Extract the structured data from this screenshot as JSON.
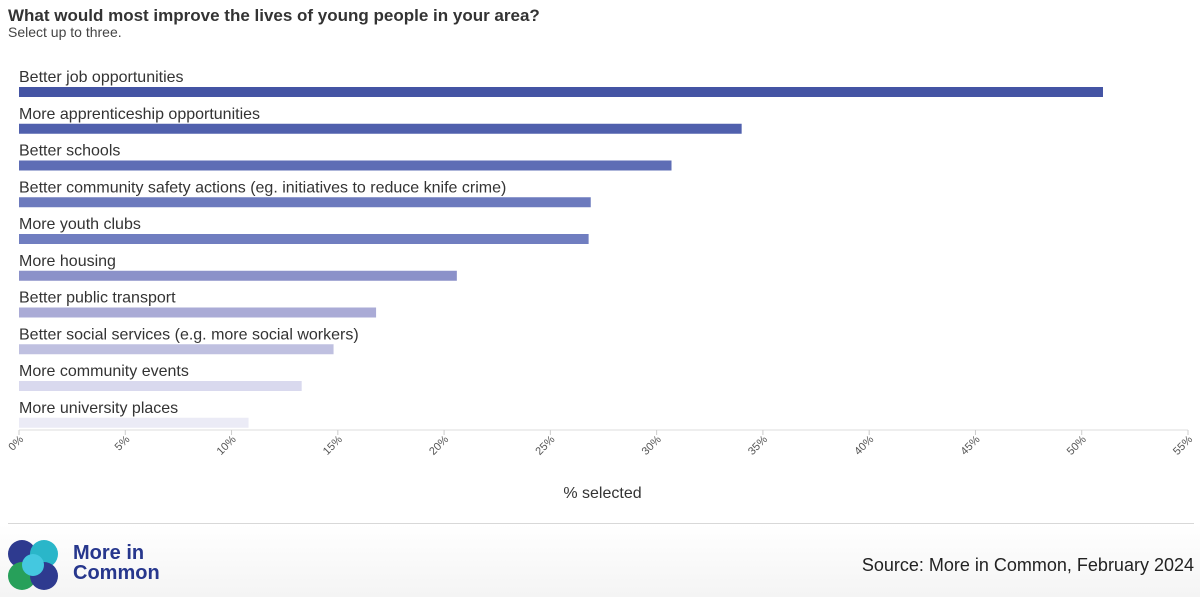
{
  "chart_data": {
    "type": "bar",
    "orientation": "horizontal",
    "title": "What would most improve the lives of young people in your area?",
    "subtitle": "Select up to three.",
    "xlabel": "% selected",
    "ylabel": "",
    "xlim": [
      0,
      55
    ],
    "ticks": [
      0,
      5,
      10,
      15,
      20,
      25,
      30,
      35,
      40,
      45,
      50,
      55
    ],
    "tick_labels": [
      "0%",
      "5%",
      "10%",
      "15%",
      "20%",
      "25%",
      "30%",
      "35%",
      "40%",
      "45%",
      "50%",
      "55%"
    ],
    "categories": [
      "Better job opportunities",
      "More apprenticeship opportunities",
      "Better schools",
      "Better community safety actions (eg. initiatives to reduce knife crime)",
      "More youth clubs",
      "More housing",
      "Better public transport",
      "Better social services (e.g. more social workers)",
      "More community events",
      "More university places"
    ],
    "values": [
      51,
      34,
      30.7,
      26.9,
      26.8,
      20.6,
      16.8,
      14.8,
      13.3,
      10.8
    ],
    "colors": [
      "#4454a4",
      "#5060ad",
      "#5e6db5",
      "#6c7abd",
      "#707ec0",
      "#8b91c9",
      "#aaabd6",
      "#bfc0e0",
      "#d9d9ee",
      "#ebebf6"
    ],
    "grid": false,
    "legend": "none"
  },
  "footer": {
    "logo_line1": "More in",
    "logo_line2": "Common",
    "source": "Source: More in Common, February 2024"
  },
  "logo_colors": [
    "#2e3a8f",
    "#2ab6c9",
    "#27a05a",
    "#44c8e0"
  ]
}
